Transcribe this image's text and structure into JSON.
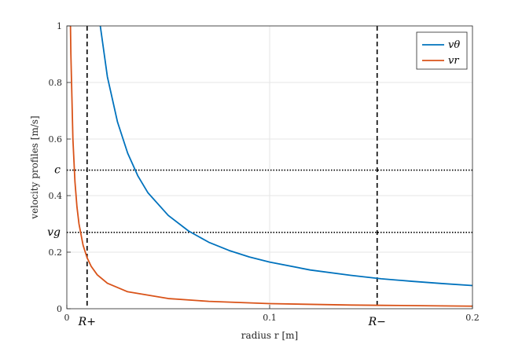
{
  "chart_data": {
    "type": "line",
    "title": "",
    "xlabel": "radius r [m]",
    "ylabel": "velocity profiles [m/s]",
    "xlim": [
      0,
      0.2
    ],
    "ylim": [
      0,
      1
    ],
    "grid": true,
    "x_ticks": [
      0,
      0.1,
      0.2
    ],
    "x_tick_labels": [
      "0",
      "0.1",
      "0.2"
    ],
    "y_ticks": [
      0,
      0.2,
      0.4,
      0.6,
      0.8,
      1
    ],
    "y_tick_labels": [
      "0",
      "0.2",
      "0.4",
      "0.6",
      "0.8",
      "1"
    ],
    "legend_position": "top-right",
    "series": [
      {
        "name": "vθ",
        "color": "#0072BD",
        "x": [
          0.0165,
          0.02,
          0.025,
          0.03,
          0.035,
          0.04,
          0.05,
          0.06,
          0.07,
          0.08,
          0.09,
          0.1,
          0.12,
          0.14,
          0.155,
          0.17,
          0.185,
          0.2
        ],
        "y": [
          1.0,
          0.82,
          0.66,
          0.55,
          0.47,
          0.41,
          0.33,
          0.275,
          0.235,
          0.206,
          0.183,
          0.165,
          0.137,
          0.118,
          0.106,
          0.097,
          0.089,
          0.082
        ]
      },
      {
        "name": "vr",
        "color": "#D95319",
        "x": [
          0.0018,
          0.002,
          0.003,
          0.004,
          0.005,
          0.006,
          0.008,
          0.01,
          0.012,
          0.015,
          0.02,
          0.03,
          0.05,
          0.07,
          0.1,
          0.14,
          0.155,
          0.2
        ],
        "y": [
          1.0,
          0.9,
          0.6,
          0.45,
          0.36,
          0.3,
          0.225,
          0.18,
          0.15,
          0.12,
          0.09,
          0.06,
          0.036,
          0.026,
          0.018,
          0.013,
          0.012,
          0.009
        ]
      }
    ],
    "reference_lines": [
      {
        "orientation": "vertical",
        "value": 0.01,
        "label": "R+",
        "style": "dashed"
      },
      {
        "orientation": "vertical",
        "value": 0.153,
        "label": "R−",
        "style": "dashed"
      },
      {
        "orientation": "horizontal",
        "value": 0.49,
        "label": "c",
        "style": "dotted"
      },
      {
        "orientation": "horizontal",
        "value": 0.27,
        "label": "vg",
        "style": "dotted"
      }
    ]
  }
}
